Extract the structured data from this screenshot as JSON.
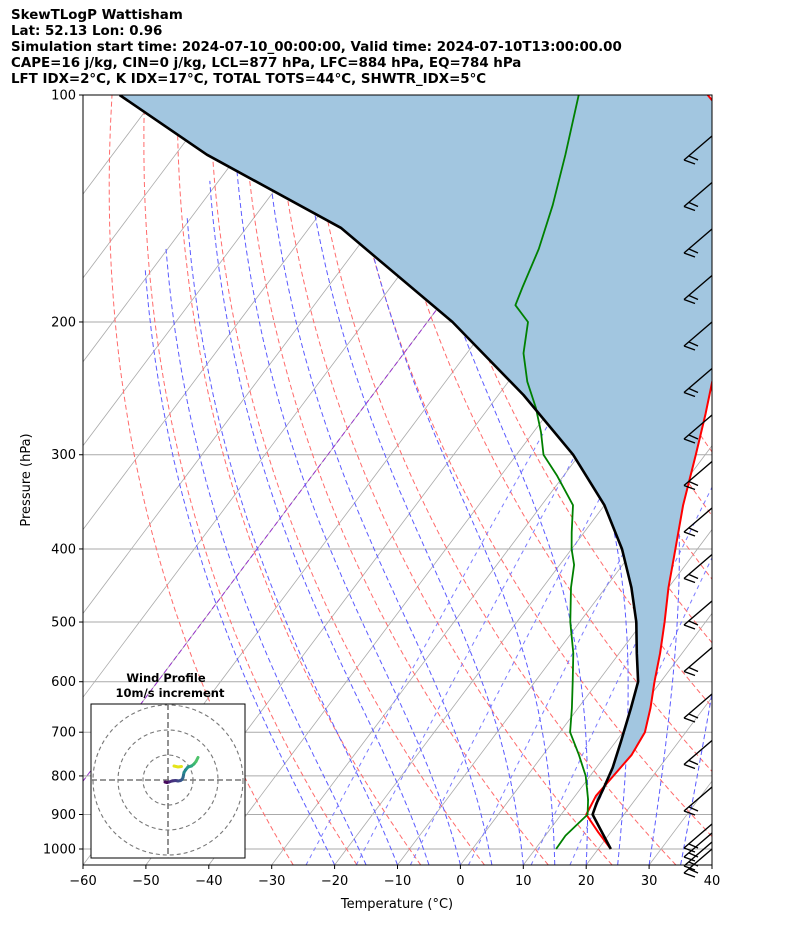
{
  "header": {
    "line1": "SkewTLogP Wattisham",
    "line2": "Lat: 52.13   Lon: 0.96",
    "line3": "Simulation start time: 2024-07-10_00:00:00, Valid time: 2024-07-10T13:00:00.00",
    "line4": "CAPE=16 j/kg, CIN=0 j/kg, LCL=877 hPa, LFC=884 hPa, EQ=784 hPa",
    "line5": "LFT IDX=2°C, K IDX=17°C, TOTAL TOTS=44°C, SHWTR_IDX=5°C"
  },
  "chart_data": {
    "type": "line",
    "subtype": "skew-T log-P",
    "xlabel": "Temperature (°C)",
    "ylabel": "Pressure (hPa)",
    "xlim": [
      -60,
      40
    ],
    "ylim": [
      1050,
      100
    ],
    "y_scale": "log",
    "grid": true,
    "x_ticks": [
      "−60",
      "−50",
      "−40",
      "−30",
      "−20",
      "−10",
      "0",
      "10",
      "20",
      "30",
      "40"
    ],
    "y_ticks": [
      "1000",
      "900",
      "800",
      "700",
      "600",
      "500",
      "400",
      "300",
      "200",
      "100"
    ],
    "colors": {
      "temperature": "#ff0000",
      "dewpoint": "#008000",
      "parcel": "#000000",
      "cape_fill": "#a2c6e0",
      "dry_adiabat": "#ff6b6b",
      "moist_adiabat": "#5b5bff",
      "mixing_ratio": "#7a7aff",
      "isotherm": "#aaaaaa",
      "zero_isotherm": "#9933cc"
    },
    "series": [
      {
        "name": "",
        "color": "#ff0000",
        "points": [
          [
            22,
            1000
          ],
          [
            18,
            950
          ],
          [
            14,
            900
          ],
          [
            13.3,
            850
          ],
          [
            13.7,
            800
          ],
          [
            14.1,
            750
          ],
          [
            13.5,
            700
          ],
          [
            11.5,
            650
          ],
          [
            9,
            600
          ],
          [
            6.5,
            550
          ],
          [
            3.5,
            500
          ],
          [
            0,
            450
          ],
          [
            -3.5,
            400
          ],
          [
            -7.5,
            350
          ],
          [
            -11.5,
            300
          ],
          [
            -14.8,
            265
          ],
          [
            -17.6,
            240
          ],
          [
            -17.8,
            225
          ],
          [
            -18.5,
            210
          ],
          [
            -16.8,
            200
          ],
          [
            -16.3,
            180
          ],
          [
            -17.3,
            160
          ],
          [
            -20.2,
            150
          ],
          [
            -24.6,
            140
          ],
          [
            -33.2,
            126
          ],
          [
            -43.2,
            112
          ],
          [
            -52.5,
            100
          ]
        ]
      },
      {
        "name": "",
        "color": "#008000",
        "points": [
          [
            13.3,
            1000
          ],
          [
            13.2,
            960
          ],
          [
            14.2,
            900
          ],
          [
            12.5,
            860
          ],
          [
            9.3,
            800
          ],
          [
            5.7,
            750
          ],
          [
            1.6,
            700
          ],
          [
            -1,
            650
          ],
          [
            -4,
            600
          ],
          [
            -7.3,
            550
          ],
          [
            -11.5,
            500
          ],
          [
            -15.5,
            450
          ],
          [
            -17.7,
            420
          ],
          [
            -20,
            400
          ],
          [
            -22,
            380
          ],
          [
            -25,
            350
          ],
          [
            -31,
            320
          ],
          [
            -35.7,
            300
          ],
          [
            -38.8,
            280
          ],
          [
            -42.5,
            260
          ],
          [
            -47,
            240
          ],
          [
            -51,
            220
          ],
          [
            -54,
            200
          ],
          [
            -58,
            190
          ],
          [
            -59,
            180
          ],
          [
            -61,
            160
          ],
          [
            -64,
            140
          ],
          [
            -68,
            120
          ],
          [
            -73,
            100
          ]
        ]
      },
      {
        "name": "",
        "color": "#000000",
        "points": [
          [
            22,
            1000
          ],
          [
            15,
            900
          ],
          [
            14.3,
            870
          ],
          [
            13.6,
            830
          ],
          [
            12.6,
            780
          ],
          [
            10.8,
            720
          ],
          [
            8.4,
            650
          ],
          [
            6.4,
            600
          ],
          [
            2.8,
            550
          ],
          [
            -1,
            500
          ],
          [
            -5.9,
            450
          ],
          [
            -12,
            400
          ],
          [
            -20,
            350
          ],
          [
            -31,
            300
          ],
          [
            -46,
            250
          ],
          [
            -66,
            200
          ],
          [
            -95,
            150
          ],
          [
            -125,
            120
          ],
          [
            -146,
            100
          ]
        ]
      }
    ],
    "hodograph": {
      "title": "Wind Profile",
      "subtitle": "10m/s increment",
      "points": [
        [
          6,
          4.5
        ],
        [
          5.6,
          3.7
        ],
        [
          5.2,
          3.2
        ],
        [
          4.7,
          2.8
        ],
        [
          4,
          2.6
        ],
        [
          3.5,
          2
        ],
        [
          3.2,
          1.5
        ],
        [
          3.1,
          1
        ],
        [
          3,
          0.5
        ],
        [
          2.8,
          0.1
        ],
        [
          2.5,
          -0.1
        ],
        [
          2,
          -0.2
        ],
        [
          1.5,
          -0.1
        ],
        [
          0.8,
          -0.2
        ],
        [
          0.2,
          -0.4
        ],
        [
          -0.2,
          -0.5
        ],
        [
          -0.6,
          -0.4
        ]
      ],
      "colors": [
        "#4ec36b",
        "#4cc26c",
        "#3bb570",
        "#2fa884",
        "#26968c",
        "#23898e",
        "#238a8d",
        "#2c728e",
        "#2e6b8e",
        "#33638d",
        "#3b528b",
        "#404688",
        "#443983",
        "#472f7d",
        "#482576",
        "#46085c",
        "#440154"
      ],
      "yellow_points": [
        [
          1.2,
          2.8
        ],
        [
          2,
          2.6
        ],
        [
          2.7,
          2.7
        ]
      ]
    }
  }
}
